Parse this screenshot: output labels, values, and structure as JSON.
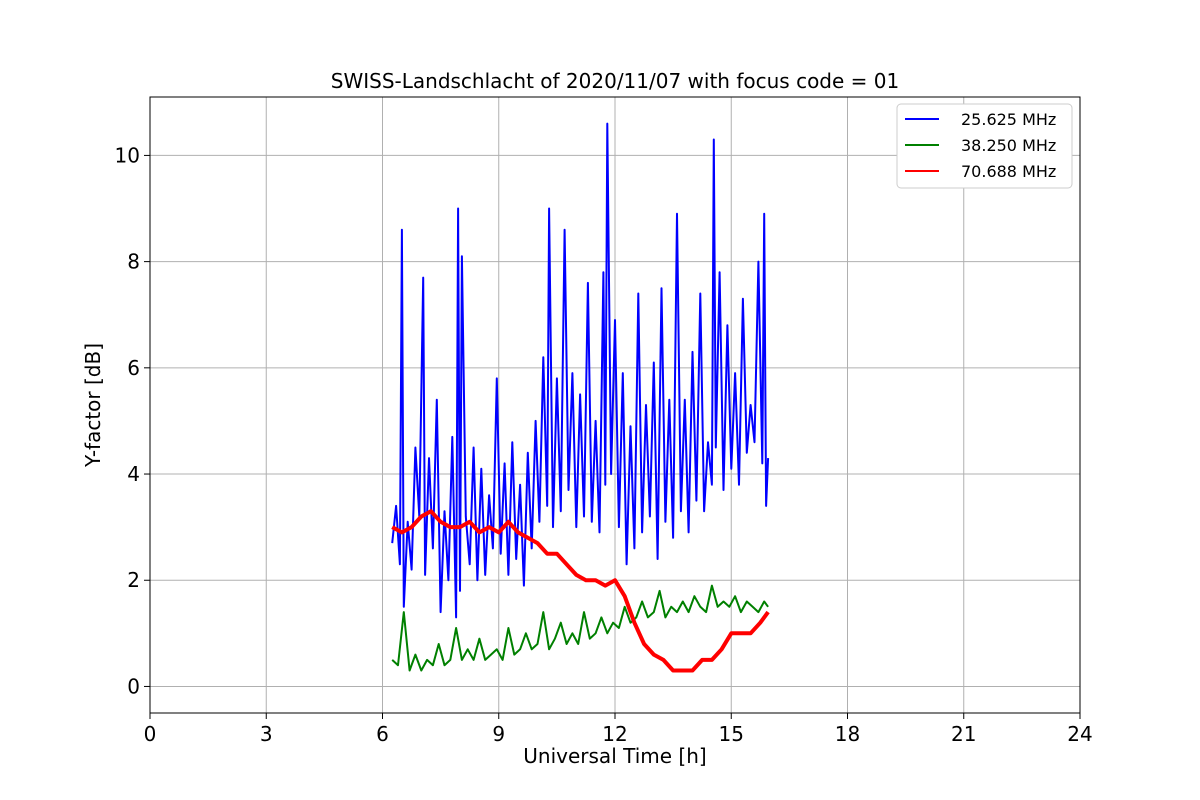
{
  "chart_data": {
    "type": "line",
    "title": "SWISS-Landschlacht of 2020/11/07 with focus code = 01",
    "xlabel": "Universal Time [h]",
    "ylabel": "Y-factor [dB]",
    "xlim": [
      0,
      24
    ],
    "ylim": [
      -0.5,
      11.1
    ],
    "xticks": [
      0,
      3,
      6,
      9,
      12,
      15,
      18,
      21,
      24
    ],
    "yticks": [
      0,
      2,
      4,
      6,
      8,
      10
    ],
    "grid": true,
    "legend_position": "top-right",
    "series": [
      {
        "name": "25.625 MHz",
        "color": "#0000ff",
        "x": [
          6.25,
          6.35,
          6.45,
          6.5,
          6.55,
          6.65,
          6.75,
          6.85,
          6.95,
          7.05,
          7.1,
          7.2,
          7.3,
          7.4,
          7.5,
          7.6,
          7.7,
          7.8,
          7.9,
          7.95,
          8.0,
          8.05,
          8.15,
          8.25,
          8.35,
          8.45,
          8.55,
          8.65,
          8.75,
          8.85,
          8.95,
          9.05,
          9.15,
          9.25,
          9.35,
          9.45,
          9.55,
          9.65,
          9.75,
          9.85,
          9.95,
          10.05,
          10.15,
          10.25,
          10.3,
          10.4,
          10.5,
          10.6,
          10.7,
          10.8,
          10.9,
          11.0,
          11.1,
          11.2,
          11.3,
          11.4,
          11.5,
          11.6,
          11.7,
          11.75,
          11.8,
          11.9,
          12.0,
          12.1,
          12.2,
          12.3,
          12.4,
          12.5,
          12.6,
          12.7,
          12.8,
          12.9,
          13.0,
          13.1,
          13.2,
          13.3,
          13.4,
          13.5,
          13.6,
          13.7,
          13.8,
          13.9,
          14.0,
          14.1,
          14.2,
          14.3,
          14.4,
          14.5,
          14.55,
          14.6,
          14.7,
          14.8,
          14.9,
          15.0,
          15.1,
          15.2,
          15.3,
          15.4,
          15.5,
          15.6,
          15.7,
          15.8,
          15.85,
          15.9,
          15.95
        ],
        "values": [
          2.7,
          3.4,
          2.3,
          8.6,
          1.5,
          3.1,
          2.2,
          4.5,
          3.2,
          7.7,
          2.1,
          4.3,
          2.6,
          5.4,
          1.4,
          3.3,
          2.0,
          4.7,
          1.3,
          9.0,
          1.8,
          8.1,
          3.2,
          2.3,
          4.5,
          2.0,
          4.1,
          2.1,
          3.6,
          2.6,
          5.8,
          2.5,
          4.2,
          2.1,
          4.6,
          2.4,
          3.8,
          1.9,
          4.4,
          2.6,
          5.0,
          3.1,
          6.2,
          3.4,
          9.0,
          3.0,
          5.8,
          3.3,
          8.6,
          3.7,
          5.9,
          3.0,
          5.5,
          3.2,
          7.6,
          3.1,
          5.0,
          2.9,
          7.8,
          3.8,
          10.6,
          4.0,
          6.9,
          3.0,
          5.9,
          2.3,
          4.9,
          2.6,
          7.4,
          2.9,
          5.3,
          3.2,
          6.1,
          2.4,
          7.5,
          3.1,
          5.4,
          2.8,
          8.9,
          3.3,
          5.4,
          2.9,
          6.3,
          3.5,
          7.4,
          3.3,
          4.6,
          3.8,
          10.3,
          4.5,
          7.8,
          3.7,
          6.8,
          4.1,
          5.9,
          3.8,
          7.3,
          4.4,
          5.3,
          4.6,
          8.0,
          4.2,
          8.9,
          3.4,
          4.3
        ]
      },
      {
        "name": "38.250 MHz",
        "color": "#008000",
        "x": [
          6.25,
          6.4,
          6.55,
          6.7,
          6.85,
          7.0,
          7.15,
          7.3,
          7.45,
          7.6,
          7.75,
          7.9,
          8.05,
          8.2,
          8.35,
          8.5,
          8.65,
          8.8,
          8.95,
          9.1,
          9.25,
          9.4,
          9.55,
          9.7,
          9.85,
          10.0,
          10.15,
          10.3,
          10.45,
          10.6,
          10.75,
          10.9,
          11.05,
          11.2,
          11.35,
          11.5,
          11.65,
          11.8,
          11.95,
          12.1,
          12.25,
          12.4,
          12.55,
          12.7,
          12.85,
          13.0,
          13.15,
          13.3,
          13.45,
          13.6,
          13.75,
          13.9,
          14.05,
          14.2,
          14.35,
          14.5,
          14.65,
          14.8,
          14.95,
          15.1,
          15.25,
          15.4,
          15.55,
          15.7,
          15.85,
          15.95
        ],
        "values": [
          0.5,
          0.4,
          1.4,
          0.3,
          0.6,
          0.3,
          0.5,
          0.4,
          0.8,
          0.4,
          0.5,
          1.1,
          0.5,
          0.7,
          0.5,
          0.9,
          0.5,
          0.6,
          0.7,
          0.5,
          1.1,
          0.6,
          0.7,
          1.0,
          0.7,
          0.8,
          1.4,
          0.7,
          0.9,
          1.2,
          0.8,
          1.0,
          0.8,
          1.4,
          0.9,
          1.0,
          1.3,
          1.0,
          1.2,
          1.1,
          1.5,
          1.2,
          1.3,
          1.6,
          1.3,
          1.4,
          1.8,
          1.3,
          1.5,
          1.4,
          1.6,
          1.4,
          1.7,
          1.5,
          1.4,
          1.9,
          1.5,
          1.6,
          1.5,
          1.7,
          1.4,
          1.6,
          1.5,
          1.4,
          1.6,
          1.5
        ]
      },
      {
        "name": "70.688 MHz",
        "color": "#ff0000",
        "x": [
          6.25,
          6.5,
          6.75,
          7.0,
          7.25,
          7.5,
          7.75,
          8.0,
          8.25,
          8.5,
          8.75,
          9.0,
          9.25,
          9.5,
          9.75,
          10.0,
          10.25,
          10.5,
          10.75,
          11.0,
          11.25,
          11.5,
          11.75,
          12.0,
          12.25,
          12.5,
          12.75,
          13.0,
          13.25,
          13.5,
          13.75,
          14.0,
          14.25,
          14.5,
          14.75,
          15.0,
          15.25,
          15.5,
          15.75,
          15.95
        ],
        "values": [
          3.0,
          2.9,
          3.0,
          3.2,
          3.3,
          3.1,
          3.0,
          3.0,
          3.1,
          2.9,
          3.0,
          2.9,
          3.1,
          2.9,
          2.8,
          2.7,
          2.5,
          2.5,
          2.3,
          2.1,
          2.0,
          2.0,
          1.9,
          2.0,
          1.7,
          1.2,
          0.8,
          0.6,
          0.5,
          0.3,
          0.3,
          0.3,
          0.5,
          0.5,
          0.7,
          1.0,
          1.0,
          1.0,
          1.2,
          1.4
        ]
      }
    ]
  }
}
